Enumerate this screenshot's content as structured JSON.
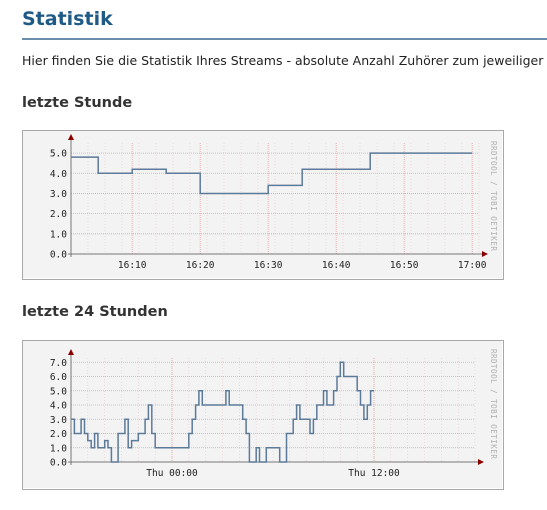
{
  "page": {
    "title": "Statistik",
    "intro": "Hier finden Sie die Statistik Ihres Streams - absolute Anzahl Zuhörer zum jeweiliger"
  },
  "charts": {
    "hour": {
      "heading": "letzte Stunde",
      "watermark": "RRDTOOL / TOBI OETIKER"
    },
    "day": {
      "heading": "letzte 24 Stunden",
      "watermark": "RRDTOOL / TOBI OETIKER"
    }
  },
  "colors": {
    "title": "#1f5a86",
    "line": "#5c7a99",
    "grid": "#e8b0b0",
    "axis": "#888888",
    "arrow": "#8a0000"
  },
  "chart_data": [
    {
      "type": "line",
      "title": "",
      "xlabel": "",
      "ylabel": "",
      "x_ticks": [
        "16:10",
        "16:20",
        "16:30",
        "16:40",
        "16:50",
        "17:00"
      ],
      "y_ticks": [
        "0.0",
        "1.0",
        "2.0",
        "3.0",
        "4.0",
        "5.0"
      ],
      "ylim": [
        0,
        5.5
      ],
      "x_range_minutes": [
        0,
        60
      ],
      "series": [
        {
          "values": [
            [
              0,
              4.8
            ],
            [
              4,
              4.8
            ],
            [
              4,
              4
            ],
            [
              9,
              4
            ],
            [
              9,
              4.2
            ],
            [
              14,
              4.2
            ],
            [
              14,
              4
            ],
            [
              19,
              4
            ],
            [
              19,
              3
            ],
            [
              29,
              3
            ],
            [
              29,
              3.4
            ],
            [
              34,
              3.4
            ],
            [
              34,
              4.2
            ],
            [
              44,
              4.2
            ],
            [
              44,
              5
            ],
            [
              59,
              5
            ]
          ]
        }
      ],
      "grid": true,
      "step": true
    },
    {
      "type": "line",
      "title": "",
      "xlabel": "",
      "ylabel": "",
      "x_ticks": [
        "Thu 00:00",
        "Thu 12:00"
      ],
      "y_ticks": [
        "0.0",
        "1.0",
        "2.0",
        "3.0",
        "4.0",
        "5.0",
        "6.0",
        "7.0"
      ],
      "ylim": [
        0,
        7.3
      ],
      "x_range_hours": [
        0,
        24
      ],
      "series": [
        {
          "values": [
            [
              0,
              3
            ],
            [
              0.2,
              3
            ],
            [
              0.2,
              2
            ],
            [
              0.6,
              2
            ],
            [
              0.6,
              3
            ],
            [
              0.8,
              3
            ],
            [
              0.8,
              2
            ],
            [
              1.0,
              2
            ],
            [
              1.0,
              1.5
            ],
            [
              1.2,
              1.5
            ],
            [
              1.2,
              1
            ],
            [
              1.4,
              1
            ],
            [
              1.4,
              2
            ],
            [
              1.6,
              2
            ],
            [
              1.6,
              1
            ],
            [
              2.0,
              1
            ],
            [
              2.0,
              1.5
            ],
            [
              2.2,
              1.5
            ],
            [
              2.2,
              1
            ],
            [
              2.4,
              1
            ],
            [
              2.4,
              0
            ],
            [
              2.8,
              0
            ],
            [
              2.8,
              2
            ],
            [
              3.2,
              2
            ],
            [
              3.2,
              3
            ],
            [
              3.4,
              3
            ],
            [
              3.4,
              1
            ],
            [
              3.6,
              1
            ],
            [
              3.6,
              1.5
            ],
            [
              4.0,
              1.5
            ],
            [
              4.0,
              2
            ],
            [
              4.4,
              2
            ],
            [
              4.4,
              3
            ],
            [
              4.6,
              3
            ],
            [
              4.6,
              4
            ],
            [
              4.8,
              4
            ],
            [
              4.8,
              2
            ],
            [
              5.0,
              2
            ],
            [
              5.0,
              1
            ],
            [
              7.0,
              1
            ],
            [
              7.0,
              2
            ],
            [
              7.2,
              2
            ],
            [
              7.2,
              3
            ],
            [
              7.4,
              3
            ],
            [
              7.4,
              4
            ],
            [
              7.6,
              4
            ],
            [
              7.6,
              5
            ],
            [
              7.8,
              5
            ],
            [
              7.8,
              4
            ],
            [
              9.2,
              4
            ],
            [
              9.2,
              5
            ],
            [
              9.4,
              5
            ],
            [
              9.4,
              4
            ],
            [
              10.2,
              4
            ],
            [
              10.2,
              3
            ],
            [
              10.4,
              3
            ],
            [
              10.4,
              2
            ],
            [
              10.6,
              2
            ],
            [
              10.6,
              0
            ],
            [
              11.0,
              0
            ],
            [
              11.0,
              1
            ],
            [
              11.2,
              1
            ],
            [
              11.2,
              0
            ],
            [
              11.6,
              0
            ],
            [
              11.6,
              1
            ],
            [
              12.4,
              1
            ],
            [
              12.4,
              0
            ],
            [
              12.8,
              0
            ],
            [
              12.8,
              2
            ],
            [
              13.2,
              2
            ],
            [
              13.2,
              3
            ],
            [
              13.4,
              3
            ],
            [
              13.4,
              4
            ],
            [
              13.6,
              4
            ],
            [
              13.6,
              3
            ],
            [
              14.2,
              3
            ],
            [
              14.2,
              2
            ],
            [
              14.4,
              2
            ],
            [
              14.4,
              3
            ],
            [
              14.6,
              3
            ],
            [
              14.6,
              4
            ],
            [
              15.0,
              4
            ],
            [
              15.0,
              5
            ],
            [
              15.2,
              5
            ],
            [
              15.2,
              4
            ],
            [
              15.6,
              4
            ],
            [
              15.6,
              5
            ],
            [
              15.8,
              5
            ],
            [
              15.8,
              6
            ],
            [
              16.0,
              6
            ],
            [
              16.0,
              7
            ],
            [
              16.2,
              7
            ],
            [
              16.2,
              6
            ],
            [
              17.0,
              6
            ],
            [
              17.0,
              5
            ],
            [
              17.2,
              5
            ],
            [
              17.2,
              4
            ],
            [
              17.4,
              4
            ],
            [
              17.4,
              3
            ],
            [
              17.6,
              3
            ],
            [
              17.6,
              4
            ],
            [
              17.8,
              4
            ],
            [
              17.8,
              5
            ],
            [
              18.0,
              5
            ]
          ]
        }
      ],
      "grid": true,
      "step": true
    }
  ]
}
